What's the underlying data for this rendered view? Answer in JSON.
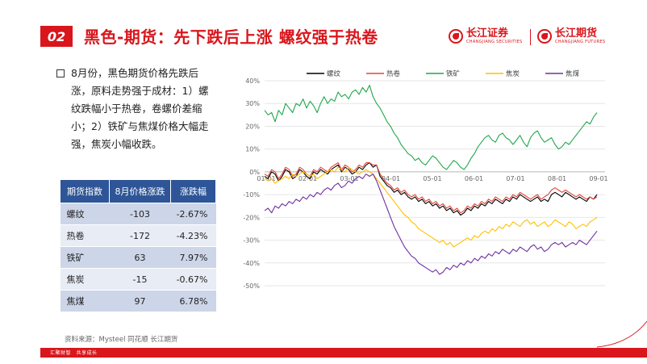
{
  "header": {
    "number": "02",
    "title": "黑色-期货：先下跌后上涨 螺纹强于热卷",
    "logo_left_cn": "长江证券",
    "logo_left_en": "CHANGJIANG SECURITIES",
    "logo_right_cn": "长江期货",
    "logo_right_en": "CHANGJIANG FUTURES"
  },
  "bullet": {
    "text": "8月份，黑色期货价格先跌后涨，原料走势强于成材：1）螺纹跌幅小于热卷，卷螺价差缩小；2）铁矿与焦煤价格大幅走强，焦炭小幅收跌。"
  },
  "table": {
    "headers": [
      "期货指数",
      "8月价格涨跌",
      "涨跌幅"
    ],
    "rows": [
      [
        "螺纹",
        "-103",
        "-2.67%"
      ],
      [
        "热卷",
        "-172",
        "-4.23%"
      ],
      [
        "铁矿",
        "63",
        "7.97%"
      ],
      [
        "焦炭",
        "-15",
        "-0.67%"
      ],
      [
        "焦煤",
        "97",
        "6.78%"
      ]
    ]
  },
  "footer": {
    "source": "资料来源：Mysteel  同花顺  长江期货",
    "slogan": "汇聚财智　共享成长"
  },
  "colors": {
    "accent": "#d9161c",
    "table_header": "#2e5597",
    "rebar": "#000000",
    "hot_coil": "#e0463a",
    "iron_ore": "#1fa74a",
    "coke": "#ffc000",
    "coking_coal": "#7030a0"
  },
  "chart_data": {
    "type": "line",
    "x_ticks": [
      "01-01",
      "02-01",
      "03-01",
      "04-01",
      "05-01",
      "06-01",
      "07-01",
      "08-01",
      "09-01"
    ],
    "ylim": [
      -50,
      40
    ],
    "y_ticks": [
      "40%",
      "30%",
      "20%",
      "10%",
      "0%",
      "-10%",
      "-20%",
      "-30%",
      "-40%",
      "-50%"
    ],
    "legend_position": "top",
    "series": [
      {
        "name": "螺纹",
        "color": "#000000",
        "values": [
          -2,
          -3,
          0,
          -1,
          -4,
          -2,
          1,
          0,
          -3,
          -2,
          1,
          0,
          -2,
          -3,
          0,
          -1,
          1,
          0,
          -1,
          1,
          2,
          3,
          0,
          2,
          1,
          -1,
          0,
          2,
          1,
          3,
          4,
          2,
          3,
          -2,
          -4,
          -6,
          -7,
          -9,
          -8,
          -10,
          -9,
          -11,
          -12,
          -11,
          -13,
          -12,
          -14,
          -13,
          -15,
          -14,
          -16,
          -15,
          -17,
          -16,
          -18,
          -17,
          -19,
          -18,
          -16,
          -17,
          -15,
          -16,
          -14,
          -15,
          -13,
          -14,
          -12,
          -13,
          -14,
          -12,
          -13,
          -11,
          -12,
          -10,
          -11,
          -12,
          -13,
          -12,
          -11,
          -13,
          -12,
          -13,
          -10,
          -9,
          -10,
          -11,
          -9,
          -10,
          -11,
          -12,
          -11,
          -12,
          -13,
          -11,
          -12,
          -10
        ]
      },
      {
        "name": "热卷",
        "color": "#e0463a",
        "values": [
          -1,
          -2,
          1,
          0,
          -3,
          -1,
          2,
          1,
          -2,
          -1,
          2,
          1,
          -1,
          -2,
          1,
          0,
          2,
          1,
          0,
          2,
          3,
          4,
          1,
          3,
          2,
          0,
          1,
          3,
          2,
          4,
          4,
          3,
          3,
          -1,
          -3,
          -5,
          -6,
          -8,
          -7,
          -9,
          -8,
          -10,
          -11,
          -10,
          -12,
          -11,
          -13,
          -12,
          -14,
          -13,
          -15,
          -14,
          -16,
          -15,
          -17,
          -16,
          -18,
          -17,
          -15,
          -16,
          -14,
          -15,
          -13,
          -14,
          -12,
          -13,
          -11,
          -12,
          -13,
          -11,
          -12,
          -10,
          -11,
          -9,
          -10,
          -11,
          -12,
          -11,
          -10,
          -12,
          -11,
          -10,
          -8,
          -7,
          -8,
          -9,
          -8,
          -9,
          -10,
          -11,
          -10,
          -11,
          -12,
          -11,
          -12,
          -11
        ]
      },
      {
        "name": "铁矿",
        "color": "#1fa74a",
        "values": [
          27,
          25,
          26,
          22,
          27,
          25,
          30,
          28,
          26,
          30,
          29,
          32,
          28,
          31,
          29,
          26,
          30,
          33,
          30,
          32,
          31,
          35,
          33,
          34,
          32,
          35,
          36,
          34,
          37,
          35,
          38,
          33,
          30,
          28,
          25,
          22,
          20,
          17,
          15,
          12,
          10,
          8,
          7,
          5,
          6,
          4,
          3,
          5,
          7,
          6,
          4,
          2,
          1,
          3,
          5,
          4,
          2,
          1,
          3,
          6,
          8,
          11,
          13,
          15,
          16,
          14,
          13,
          16,
          17,
          15,
          14,
          12,
          14,
          16,
          13,
          11,
          15,
          17,
          18,
          15,
          13,
          14,
          15,
          12,
          10,
          11,
          13,
          12,
          14,
          16,
          18,
          20,
          22,
          21,
          24,
          26
        ]
      },
      {
        "name": "焦炭",
        "color": "#ffc000",
        "values": [
          -3,
          -4,
          -3,
          -5,
          -4,
          -3,
          -2,
          -3,
          -1,
          -2,
          -1,
          0,
          -1,
          -2,
          -1,
          -3,
          -2,
          -1,
          0,
          1,
          0,
          2,
          1,
          0,
          2,
          1,
          0,
          -1,
          0,
          1,
          0,
          -1,
          -3,
          -5,
          -7,
          -9,
          -11,
          -13,
          -15,
          -17,
          -19,
          -20,
          -22,
          -23,
          -25,
          -26,
          -27,
          -28,
          -29,
          -30,
          -31,
          -30,
          -32,
          -31,
          -33,
          -32,
          -31,
          -30,
          -29,
          -30,
          -28,
          -29,
          -27,
          -26,
          -27,
          -25,
          -26,
          -24,
          -25,
          -23,
          -24,
          -22,
          -23,
          -24,
          -22,
          -21,
          -23,
          -22,
          -24,
          -23,
          -22,
          -24,
          -23,
          -21,
          -22,
          -23,
          -24,
          -22,
          -23,
          -25,
          -24,
          -23,
          -24,
          -22,
          -21,
          -20
        ]
      },
      {
        "name": "焦煤",
        "color": "#7030a0",
        "values": [
          -17,
          -16,
          -18,
          -15,
          -16,
          -14,
          -15,
          -13,
          -14,
          -12,
          -13,
          -11,
          -12,
          -10,
          -11,
          -9,
          -10,
          -8,
          -7,
          -8,
          -6,
          -5,
          -7,
          -6,
          -4,
          -5,
          -3,
          -2,
          -3,
          -1,
          -2,
          -1,
          -4,
          -8,
          -12,
          -16,
          -20,
          -24,
          -27,
          -30,
          -33,
          -35,
          -37,
          -38,
          -40,
          -41,
          -42,
          -43,
          -44,
          -43,
          -45,
          -44,
          -42,
          -43,
          -41,
          -42,
          -40,
          -41,
          -39,
          -40,
          -38,
          -39,
          -37,
          -38,
          -36,
          -37,
          -35,
          -36,
          -34,
          -35,
          -36,
          -34,
          -35,
          -33,
          -34,
          -35,
          -33,
          -32,
          -34,
          -33,
          -35,
          -34,
          -32,
          -31,
          -32,
          -31,
          -33,
          -32,
          -31,
          -32,
          -30,
          -31,
          -32,
          -30,
          -28,
          -26
        ]
      }
    ]
  }
}
